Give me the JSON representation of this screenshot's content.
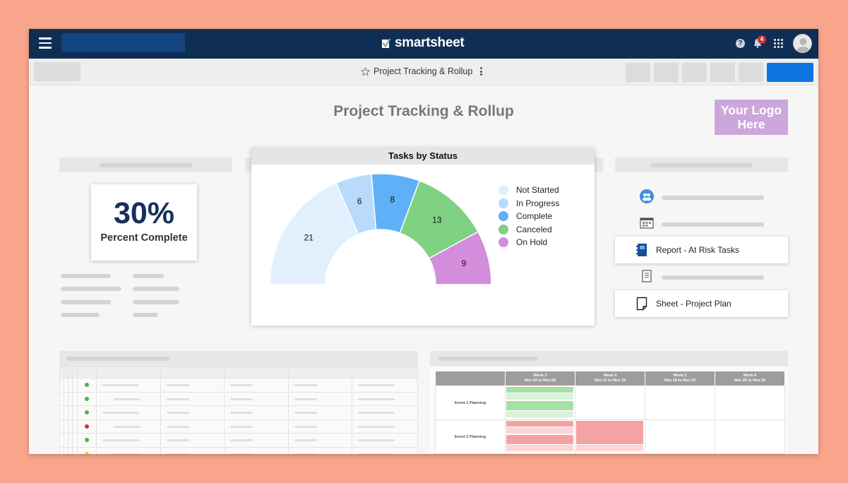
{
  "app": {
    "brand": "smartsheet",
    "notification_count": "4",
    "help_glyph": "?"
  },
  "toolbar": {
    "document_title": "Project Tracking & Rollup"
  },
  "dashboard": {
    "title": "Project Tracking & Rollup",
    "logo_text": "Your Logo Here",
    "metric": {
      "value": "30%",
      "label": "Percent Complete"
    },
    "links": [
      {
        "label": "Report - At Risk Tasks",
        "icon": "report-icon"
      },
      {
        "label": "Sheet - Project Plan",
        "icon": "sheet-icon"
      }
    ],
    "status_dots": [
      "#4caf50",
      "#4caf50",
      "#4caf50",
      "#d32f2f",
      "#4caf50",
      "#f0c419"
    ],
    "gantt": {
      "weeks": [
        {
          "name": "Week 3",
          "range": "Nov 04 to Nov 08"
        },
        {
          "name": "Week 4",
          "range": "Nov 11 to Nov 15"
        },
        {
          "name": "Week 5",
          "range": "Nov 18 to Nov 22"
        },
        {
          "name": "Week 6",
          "range": "Nov 25 to Nov 29"
        }
      ],
      "rows": [
        "Event 1 Planning",
        "Event 2 Planning"
      ]
    }
  },
  "chart_data": {
    "type": "pie",
    "title": "Tasks by Status",
    "style": "half-donut",
    "categories": [
      "Not Started",
      "In Progress",
      "Complete",
      "Canceled",
      "On Hold"
    ],
    "values": [
      21,
      6,
      8,
      13,
      9
    ],
    "colors": [
      "#e1f0fc",
      "#b8dbfb",
      "#5eb0f7",
      "#7fd184",
      "#d38ddc"
    ],
    "legend": "right"
  }
}
